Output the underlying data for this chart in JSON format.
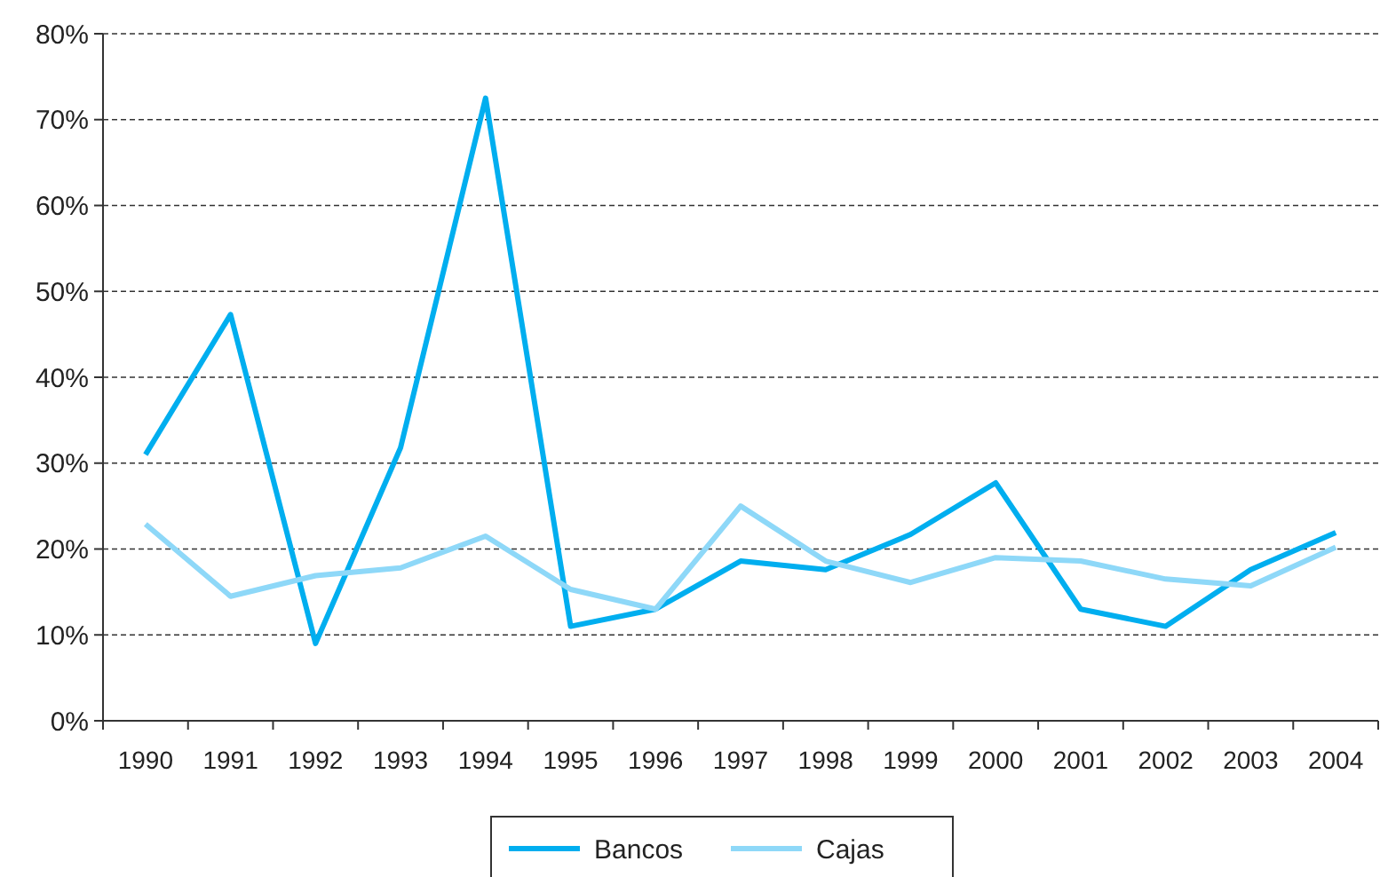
{
  "chart_data": {
    "type": "line",
    "categories": [
      "1990",
      "1991",
      "1992",
      "1993",
      "1994",
      "1995",
      "1996",
      "1997",
      "1998",
      "1999",
      "2000",
      "2001",
      "2002",
      "2003",
      "2004"
    ],
    "series": [
      {
        "name": "Bancos",
        "color": "#00aeef",
        "values": [
          31,
          47.3,
          9,
          31.8,
          72.5,
          11,
          13,
          18.6,
          17.6,
          21.7,
          27.7,
          13,
          11,
          17.6,
          21.9
        ]
      },
      {
        "name": "Cajas",
        "color": "#8ed8f8",
        "values": [
          22.9,
          14.5,
          16.9,
          17.8,
          21.5,
          15.3,
          13,
          25,
          18.6,
          16.1,
          19,
          18.6,
          16.5,
          15.7,
          20.2
        ]
      }
    ],
    "ylim": [
      0,
      80
    ],
    "yticks": [
      {
        "value": 0,
        "label": "0%"
      },
      {
        "value": 10,
        "label": "10%"
      },
      {
        "value": 20,
        "label": "20%"
      },
      {
        "value": 30,
        "label": "30%"
      },
      {
        "value": 40,
        "label": "40%"
      },
      {
        "value": 50,
        "label": "50%"
      },
      {
        "value": 60,
        "label": "60%"
      },
      {
        "value": 70,
        "label": "70%"
      },
      {
        "value": 80,
        "label": "80%"
      }
    ],
    "grid": "y",
    "legend": "bottom",
    "marker": "none",
    "line_style": "solid"
  }
}
